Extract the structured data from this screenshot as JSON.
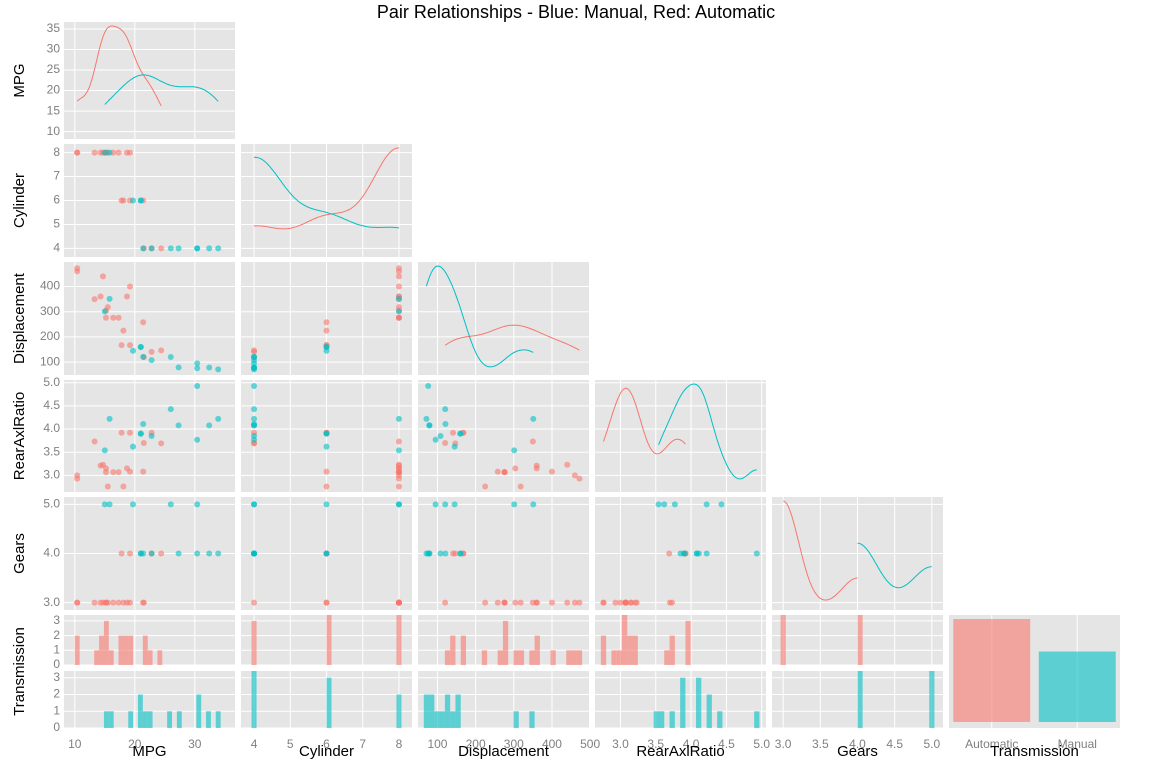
{
  "chart_data": {
    "type": "pairs",
    "title": "Pair Relationships - Blue: Manual, Red: Automatic",
    "variables": [
      {
        "name": "MPG",
        "lim": [
          8.2,
          36.7
        ],
        "ticks": [
          10,
          20,
          30
        ],
        "row_ticks": [
          10,
          15,
          20,
          25,
          30,
          35
        ]
      },
      {
        "name": "Cylinder",
        "lim": [
          3.64,
          8.36
        ],
        "ticks": [
          4,
          5,
          6,
          7,
          8
        ]
      },
      {
        "name": "Displacement",
        "lim": [
          49,
          497
        ],
        "ticks": [
          100,
          200,
          300,
          400,
          500
        ],
        "row_ticks": [
          100,
          200,
          300,
          400
        ]
      },
      {
        "name": "RearAxlRatio",
        "lim": [
          2.64,
          5.06
        ],
        "ticks": [
          {
            "value": 3,
            "label": "3.0"
          },
          {
            "value": 3.5,
            "label": "3.5"
          },
          {
            "value": 4,
            "label": "4.0"
          },
          {
            "value": 4.5,
            "label": "4.5"
          },
          {
            "value": 5,
            "label": "5.0"
          }
        ]
      },
      {
        "name": "Gears",
        "lim": [
          2.85,
          5.15
        ],
        "ticks": [
          {
            "value": 3,
            "label": "3.0"
          },
          {
            "value": 3.5,
            "label": "3.5"
          },
          {
            "value": 4,
            "label": "4.0"
          },
          {
            "value": 4.5,
            "label": "4.5"
          },
          {
            "value": 5,
            "label": "5.0"
          }
        ],
        "row_ticks": [
          {
            "value": 3,
            "label": "3.0"
          },
          {
            "value": 4,
            "label": "4.0"
          },
          {
            "value": 5,
            "label": "5.0"
          }
        ]
      },
      {
        "name": "Transmission"
      }
    ],
    "count_lim": [
      0,
      3.4
    ],
    "count_ticks": [
      0,
      1,
      2,
      3
    ],
    "series": [
      {
        "name": "Automatic",
        "color": "#f8766d",
        "values": [
          [
            21.4,
            18.7,
            18.1,
            14.3,
            24.4,
            22.8,
            19.2,
            17.8,
            16.4,
            17.3,
            15.2,
            10.4,
            10.4,
            14.7,
            21.5,
            15.5,
            15.2,
            13.3,
            19.2
          ],
          [
            6,
            8,
            6,
            8,
            4,
            4,
            6,
            6,
            8,
            8,
            8,
            8,
            8,
            8,
            4,
            8,
            8,
            8,
            8
          ],
          [
            258,
            360,
            225,
            360,
            146.7,
            140.8,
            167.6,
            167.6,
            275.8,
            275.8,
            275.8,
            472,
            460,
            440,
            120.1,
            318,
            304,
            350,
            400
          ],
          [
            3.08,
            3.15,
            2.76,
            3.21,
            3.69,
            3.92,
            3.92,
            3.92,
            3.07,
            3.07,
            3.07,
            2.93,
            3,
            3.23,
            3.7,
            2.76,
            3.15,
            3.73,
            3.08
          ],
          [
            3,
            3,
            3,
            3,
            4,
            4,
            4,
            4,
            3,
            3,
            3,
            3,
            3,
            3,
            3,
            3,
            3,
            3,
            3
          ]
        ]
      },
      {
        "name": "Manual",
        "color": "#00bfc4",
        "values": [
          [
            21,
            21,
            22.8,
            32.4,
            30.4,
            33.9,
            27.3,
            26,
            30.4,
            15.8,
            19.7,
            15,
            21.4
          ],
          [
            6,
            6,
            4,
            4,
            4,
            4,
            4,
            4,
            4,
            8,
            6,
            8,
            4
          ],
          [
            160,
            160,
            108,
            78.7,
            75.7,
            71.1,
            79,
            120.3,
            95.1,
            351,
            145,
            301,
            121
          ],
          [
            3.9,
            3.9,
            3.85,
            4.08,
            4.93,
            4.22,
            4.08,
            4.43,
            3.77,
            4.22,
            3.62,
            3.54,
            4.11
          ],
          [
            4,
            4,
            4,
            4,
            4,
            4,
            4,
            5,
            5,
            5,
            5,
            5,
            4
          ]
        ]
      }
    ]
  }
}
